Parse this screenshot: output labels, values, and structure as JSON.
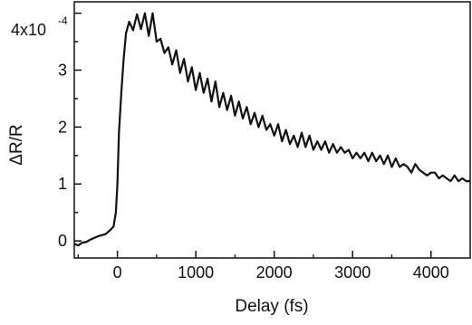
{
  "chart_data": {
    "type": "line",
    "xlabel": "Delay (fs)",
    "ylabel": "ΔR/R",
    "y_multiplier_label": "4x10",
    "y_multiplier_exponent": "-4",
    "xlim": [
      -550,
      4500
    ],
    "ylim": [
      -0.3,
      4.2
    ],
    "x_ticks": [
      {
        "value": 0,
        "label": "0"
      },
      {
        "value": 1000,
        "label": "1000"
      },
      {
        "value": 2000,
        "label": "2000"
      },
      {
        "value": 3000,
        "label": "3000"
      },
      {
        "value": 4000,
        "label": "4000"
      }
    ],
    "x_minor_ticks": [
      -500,
      500,
      1500,
      2500,
      3500
    ],
    "y_ticks": [
      {
        "value": 0,
        "label": "0"
      },
      {
        "value": 1,
        "label": "1"
      },
      {
        "value": 2,
        "label": "2"
      },
      {
        "value": 3,
        "label": "3"
      }
    ],
    "y_top_tick": 4,
    "y_minor_ticks": [
      0.5,
      1.5,
      2.5,
      3.5
    ],
    "grid": false,
    "series": [
      {
        "color": "#111111",
        "x": [
          -550,
          -500,
          -450,
          -400,
          -350,
          -300,
          -250,
          -200,
          -150,
          -100,
          -50,
          -20,
          0,
          20,
          50,
          80,
          110,
          150,
          200,
          250,
          300,
          350,
          400,
          450,
          500,
          550,
          600,
          650,
          700,
          750,
          800,
          850,
          900,
          950,
          1000,
          1050,
          1100,
          1150,
          1200,
          1250,
          1300,
          1350,
          1400,
          1450,
          1500,
          1550,
          1600,
          1650,
          1700,
          1750,
          1800,
          1850,
          1900,
          1950,
          2000,
          2050,
          2100,
          2150,
          2200,
          2250,
          2300,
          2350,
          2400,
          2450,
          2500,
          2550,
          2600,
          2650,
          2700,
          2750,
          2800,
          2850,
          2900,
          2950,
          3000,
          3050,
          3100,
          3150,
          3200,
          3250,
          3300,
          3350,
          3400,
          3450,
          3500,
          3550,
          3600,
          3650,
          3700,
          3750,
          3800,
          3850,
          3900,
          3950,
          4000,
          4050,
          4100,
          4150,
          4200,
          4250,
          4300,
          4350,
          4400,
          4450,
          4500
        ],
        "y": [
          -0.05,
          -0.08,
          -0.03,
          -0.02,
          0.02,
          0.05,
          0.08,
          0.1,
          0.12,
          0.18,
          0.25,
          0.5,
          1.0,
          1.9,
          2.6,
          3.2,
          3.65,
          3.85,
          3.7,
          3.98,
          3.72,
          4.0,
          3.6,
          4.0,
          3.5,
          3.55,
          3.3,
          3.4,
          3.1,
          3.35,
          2.95,
          3.2,
          2.8,
          3.05,
          2.65,
          2.95,
          2.6,
          2.85,
          2.45,
          2.8,
          2.35,
          2.6,
          2.3,
          2.55,
          2.2,
          2.45,
          2.15,
          2.35,
          2.05,
          2.25,
          2.0,
          2.2,
          1.95,
          2.05,
          1.85,
          2.05,
          1.75,
          1.95,
          1.7,
          1.85,
          1.65,
          1.9,
          1.65,
          1.85,
          1.6,
          1.75,
          1.6,
          1.75,
          1.55,
          1.7,
          1.55,
          1.65,
          1.55,
          1.6,
          1.45,
          1.55,
          1.45,
          1.55,
          1.4,
          1.55,
          1.4,
          1.5,
          1.35,
          1.5,
          1.3,
          1.45,
          1.3,
          1.35,
          1.3,
          1.2,
          1.35,
          1.25,
          1.2,
          1.15,
          1.2,
          1.2,
          1.1,
          1.15,
          1.1,
          1.05,
          1.15,
          1.05,
          1.1,
          1.05,
          1.05
        ]
      }
    ]
  }
}
